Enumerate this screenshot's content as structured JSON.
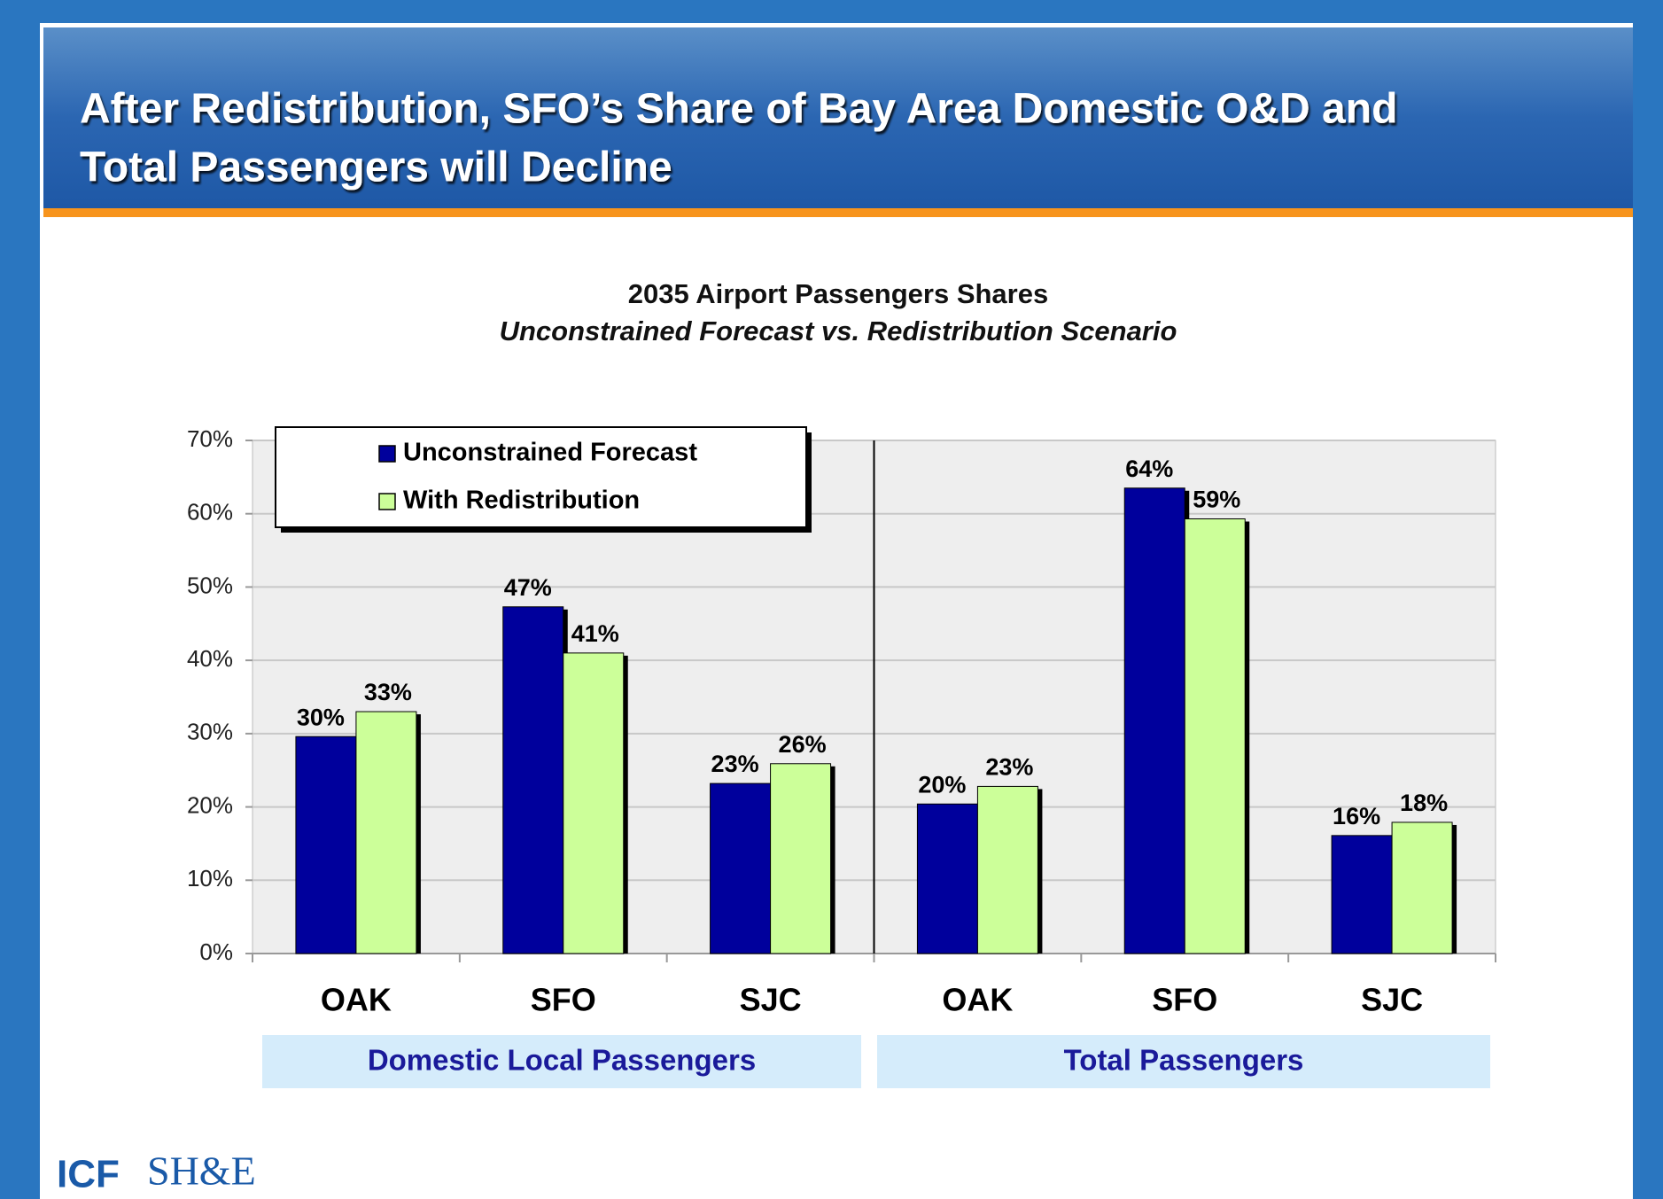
{
  "header": {
    "title_lines": [
      "After Redistribution, SFO’s Share of Bay Area Domestic O&D and",
      "Total Passengers will Decline"
    ]
  },
  "chart_data": {
    "type": "bar",
    "title": "2035 Airport Passengers Shares",
    "subtitle": "Unconstrained Forecast vs. Redistribution Scenario",
    "categories": [
      "OAK",
      "SFO",
      "SJC",
      "OAK",
      "SFO",
      "SJC"
    ],
    "groups": [
      "Domestic Local Passengers",
      "Total Passengers"
    ],
    "series": [
      {
        "name": "Unconstrained Forecast",
        "color": "#00009c",
        "values": [
          29.6,
          47.3,
          23.2,
          20.4,
          63.5,
          16.1
        ],
        "value_labels": [
          "30%",
          "47%",
          "23%",
          "20%",
          "64%",
          "16%"
        ]
      },
      {
        "name": "With Redistribution",
        "color": "#ccff99",
        "values": [
          33,
          41,
          25.9,
          22.8,
          59.3,
          17.9
        ],
        "value_labels": [
          "33%",
          "41%",
          "26%",
          "23%",
          "59%",
          "18%"
        ]
      }
    ],
    "ylim": [
      0,
      70
    ],
    "yticks": [
      {
        "value": 0,
        "label": "0%"
      },
      {
        "value": 10,
        "label": "10%"
      },
      {
        "value": 20,
        "label": "20%"
      },
      {
        "value": 30,
        "label": "30%"
      },
      {
        "value": 40,
        "label": "40%"
      },
      {
        "value": 50,
        "label": "50%"
      },
      {
        "value": 60,
        "label": "60%"
      },
      {
        "value": 70,
        "label": "70%"
      }
    ],
    "grid": true,
    "legend": "upper left"
  },
  "footer": {
    "logos": [
      "ICF",
      "SH&E"
    ]
  }
}
